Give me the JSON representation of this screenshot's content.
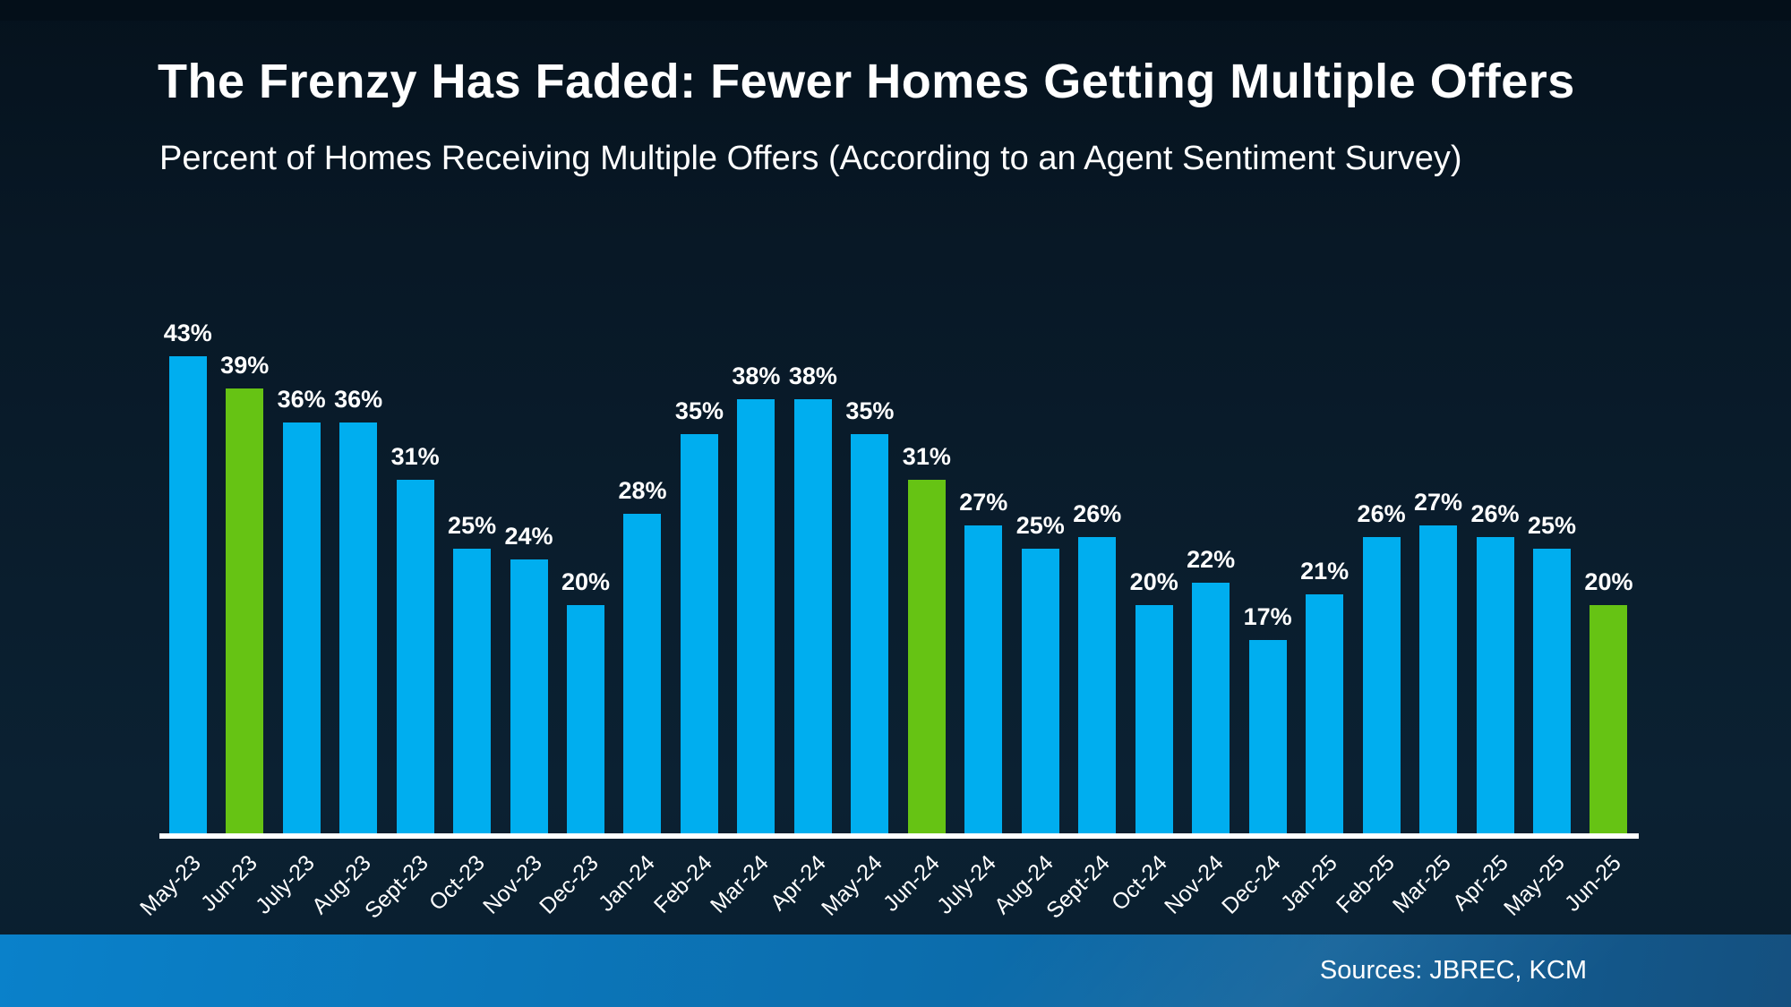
{
  "header": {
    "title": "The Frenzy Has Faded: Fewer Homes Getting Multiple Offers",
    "subtitle": "Percent of Homes Receiving Multiple Offers (According to an Agent Sentiment Survey)"
  },
  "footer": {
    "sources_label": "Sources: JBREC, KCM"
  },
  "colors": {
    "background_top": "#05121d",
    "background_bottom": "#0b2132",
    "text": "#ffffff",
    "axis_line": "#ffffff",
    "bar_default": "#00aeef",
    "bar_highlight": "#66c314",
    "footer_gradient_left": "#0a81ca",
    "footer_gradient_right": "#15507f"
  },
  "chart_data": {
    "type": "bar",
    "title": "The Frenzy Has Faded: Fewer Homes Getting Multiple Offers",
    "subtitle": "Percent of Homes Receiving Multiple Offers (According to an Agent Sentiment Survey)",
    "categories": [
      "May-23",
      "Jun-23",
      "July-23",
      "Aug-23",
      "Sept-23",
      "Oct-23",
      "Nov-23",
      "Dec-23",
      "Jan-24",
      "Feb-24",
      "Mar-24",
      "Apr-24",
      "May-24",
      "Jun-24",
      "July-24",
      "Aug-24",
      "Sept-24",
      "Oct-24",
      "Nov-24",
      "Dec-24",
      "Jan-25",
      "Feb-25",
      "Mar-25",
      "Apr-25",
      "May-25",
      "Jun-25"
    ],
    "values": [
      43,
      39,
      36,
      36,
      31,
      25,
      24,
      20,
      28,
      35,
      38,
      38,
      35,
      31,
      27,
      25,
      26,
      20,
      22,
      17,
      21,
      26,
      27,
      26,
      25,
      20
    ],
    "value_labels": [
      "43%",
      "39%",
      "36%",
      "36%",
      "31%",
      "25%",
      "24%",
      "20%",
      "28%",
      "35%",
      "38%",
      "38%",
      "35%",
      "31%",
      "27%",
      "25%",
      "26%",
      "20%",
      "22%",
      "17%",
      "21%",
      "26%",
      "27%",
      "26%",
      "25%",
      "20%"
    ],
    "highlight_indices": [
      1,
      13,
      25
    ],
    "highlighted_categories": [
      "Jun-23",
      "Jun-24",
      "Jun-25"
    ],
    "bar_color_default": "#00aeef",
    "bar_color_highlight": "#66c314",
    "ylim": [
      0,
      45
    ],
    "xlabel": "",
    "ylabel": "",
    "grid": false,
    "legend": false,
    "data_labels": true,
    "xlabel_rotation_deg": -45
  }
}
